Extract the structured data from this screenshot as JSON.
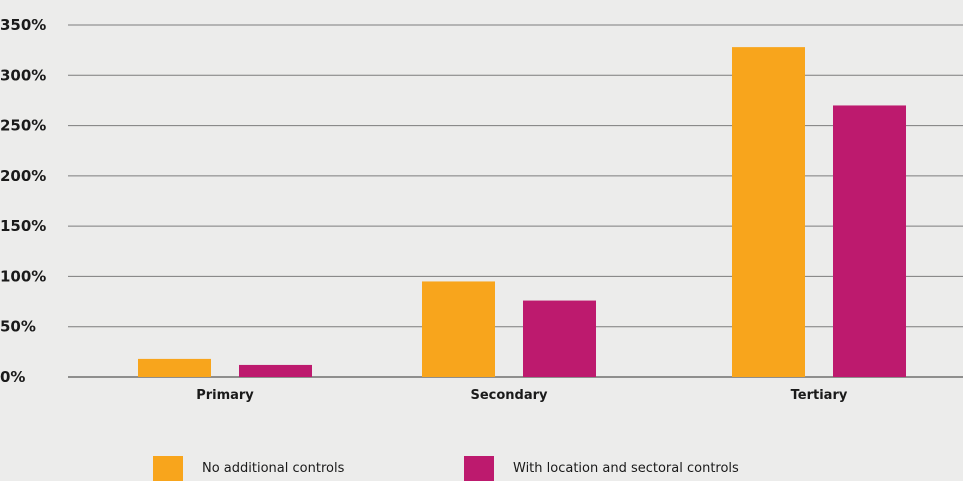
{
  "chart_data": {
    "type": "bar",
    "categories": [
      "Primary",
      "Secondary",
      "Tertiary"
    ],
    "series": [
      {
        "name": "No additional controls",
        "color": "#f8a51c",
        "values": [
          18,
          95,
          328
        ]
      },
      {
        "name": "With location and sectoral controls",
        "color": "#bd1a6e",
        "values": [
          12,
          76,
          270
        ]
      }
    ],
    "ylim": [
      0,
      350
    ],
    "yticks": [
      "0%",
      "50%",
      "100%",
      "150%",
      "200%",
      "250%",
      "300%",
      "350%"
    ],
    "ytick_values": [
      0,
      50,
      100,
      150,
      200,
      250,
      300,
      350
    ],
    "grid": true,
    "legend_position": "bottom"
  }
}
